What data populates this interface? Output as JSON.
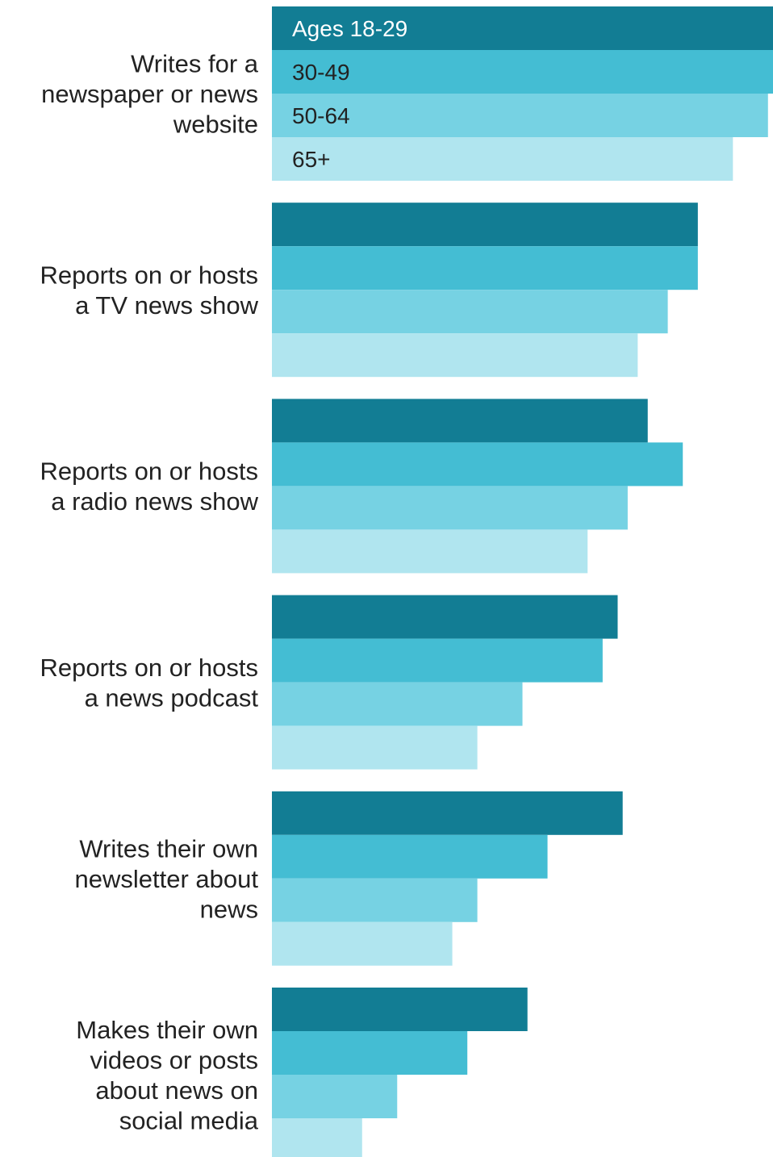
{
  "chart_data": {
    "type": "bar",
    "orientation": "horizontal",
    "title": "",
    "xlabel": "",
    "ylabel": "",
    "xlim": [
      0,
      100
    ],
    "grid": false,
    "legend": "inline on first category bars",
    "categories": [
      [
        "Writes for a",
        "newspaper or news",
        "website"
      ],
      [
        "Reports on or hosts",
        "a TV news show"
      ],
      [
        "Reports on or hosts",
        "a radio news show"
      ],
      [
        "Reports on or hosts",
        "a news podcast"
      ],
      [
        "Writes their own",
        "newsletter about",
        "news"
      ],
      [
        "Makes their own",
        "videos or posts",
        "about news on",
        "social media"
      ]
    ],
    "series": [
      {
        "name": "Ages 18-29",
        "color": "#127d94",
        "label_color": "#ffffff",
        "values": [
          100,
          85,
          75,
          69,
          70,
          51
        ]
      },
      {
        "name": "30-49",
        "color": "#44bdd3",
        "label_color": "#222222",
        "values": [
          100,
          85,
          82,
          66,
          55,
          39
        ]
      },
      {
        "name": "50-64",
        "color": "#76d2e3",
        "label_color": "#222222",
        "values": [
          99,
          79,
          71,
          50,
          41,
          25
        ]
      },
      {
        "name": "65+",
        "color": "#b0e5ef",
        "label_color": "#222222",
        "values": [
          92,
          73,
          63,
          41,
          36,
          18
        ]
      }
    ]
  }
}
